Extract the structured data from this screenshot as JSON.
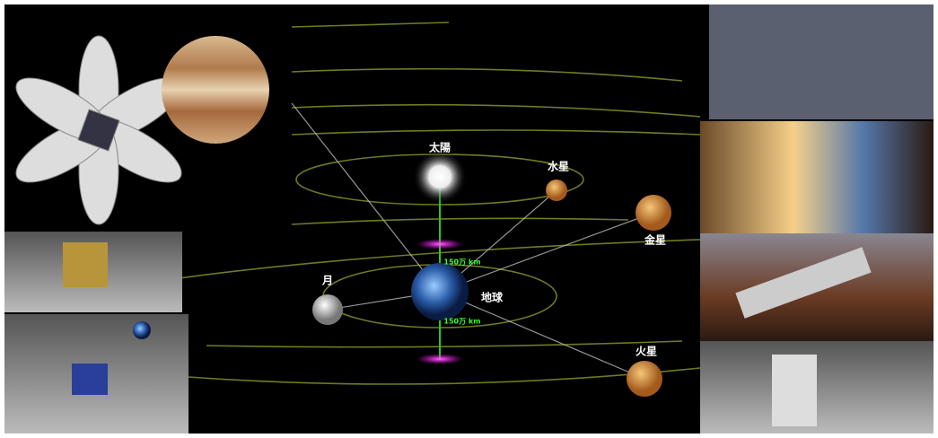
{
  "labels": {
    "sun": "太陽",
    "mercury": "水星",
    "venus": "金星",
    "moon": "月",
    "earth": "地球",
    "mars": "火星",
    "distance_upper": "150万 km",
    "distance_lower": "150万 km"
  }
}
